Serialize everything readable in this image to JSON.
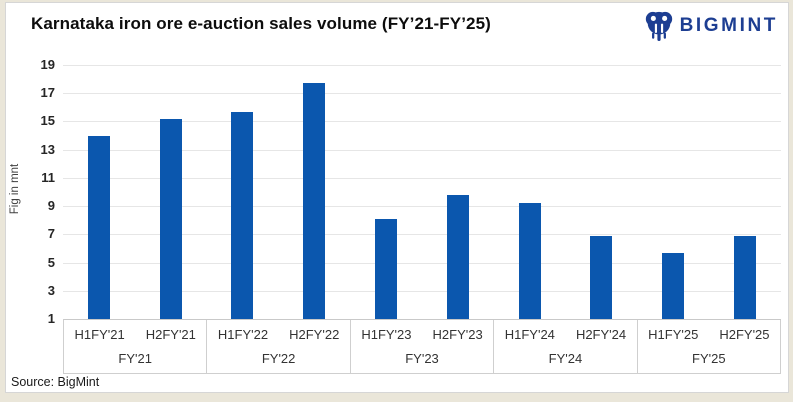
{
  "header": {
    "title": "Karnataka iron ore e-auction sales volume (FY’21-FY’25)",
    "logo_text": "BIGMINT",
    "logo_color": "#1d3e92"
  },
  "source": "Source: BigMint",
  "chart_data": {
    "type": "bar",
    "title": "Karnataka iron ore e-auction sales volume (FY’21-FY’25)",
    "ylabel": "Fig in mnt",
    "xlabel": "",
    "categories": [
      "H1FY'21",
      "H2FY'21",
      "H1FY'22",
      "H2FY'22",
      "H1FY'23",
      "H2FY'23",
      "H1FY'24",
      "H2FY'24",
      "H1FY'25",
      "H2FY'25"
    ],
    "values": [
      14.0,
      15.2,
      15.7,
      17.7,
      8.1,
      9.8,
      9.2,
      6.9,
      5.7,
      6.9
    ],
    "groups": [
      {
        "label": "FY'21",
        "span": 2
      },
      {
        "label": "FY'22",
        "span": 2
      },
      {
        "label": "FY'23",
        "span": 2
      },
      {
        "label": "FY'24",
        "span": 2
      },
      {
        "label": "FY'25",
        "span": 2
      }
    ],
    "ylim": [
      1,
      19
    ],
    "yticks": [
      1,
      3,
      5,
      7,
      9,
      11,
      13,
      15,
      17,
      19
    ],
    "grid": true,
    "legend": "none",
    "bar_color": "#0b57ae",
    "gridline_color": "#e6e6e6"
  }
}
